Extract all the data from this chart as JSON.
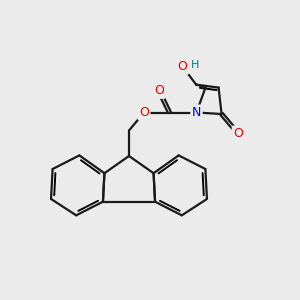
{
  "bg_color": "#ebebeb",
  "atom_colors": {
    "C": "#000000",
    "N": "#0000ee",
    "O": "#ee0000",
    "H": "#008080"
  },
  "bond_color": "#1a1a1a",
  "bond_width": 1.6,
  "figsize": [
    3.0,
    3.0
  ],
  "dpi": 100
}
